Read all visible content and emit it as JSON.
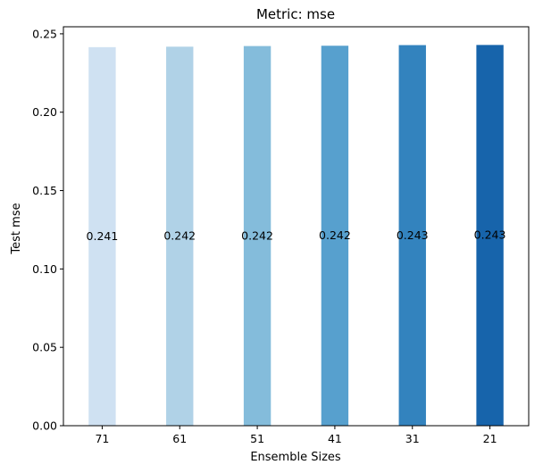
{
  "chart_data": {
    "type": "bar",
    "title": "Metric: mse",
    "xlabel": "Ensemble Sizes",
    "ylabel": "Test mse",
    "categories": [
      "71",
      "61",
      "51",
      "41",
      "31",
      "21"
    ],
    "values": [
      0.2415,
      0.2418,
      0.2422,
      0.2424,
      0.2428,
      0.2429
    ],
    "data_labels": [
      "0.241",
      "0.242",
      "0.242",
      "0.242",
      "0.243",
      "0.243"
    ],
    "ylim": [
      0,
      0.2545
    ],
    "yticks": [
      0.0,
      0.05,
      0.1,
      0.15,
      0.2,
      0.25
    ],
    "ytick_labels": [
      "0.00",
      "0.05",
      "0.10",
      "0.15",
      "0.20",
      "0.25"
    ],
    "grid": false,
    "legend": "none",
    "colors": [
      "#cfe1f2",
      "#b0d2e7",
      "#84bcdb",
      "#57a0ce",
      "#3383be",
      "#1764ab"
    ]
  }
}
